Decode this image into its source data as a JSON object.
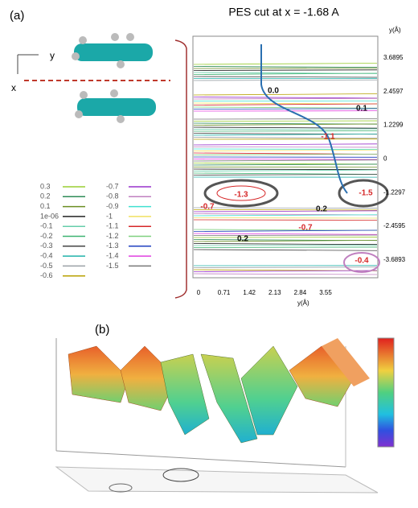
{
  "panel_a": {
    "label": "(a)",
    "title": "PES cut at x = -1.68 A",
    "axes_icon": {
      "y": "y",
      "x": "x"
    },
    "legend": [
      {
        "label": "0.3",
        "color": "#9acd32"
      },
      {
        "label": "0.2",
        "color": "#2e8b57"
      },
      {
        "label": "0.1",
        "color": "#6b8e23"
      },
      {
        "label": "1e-06",
        "color": "#222222"
      },
      {
        "label": "-0.1",
        "color": "#66cdaa"
      },
      {
        "label": "-0.2",
        "color": "#3cb371"
      },
      {
        "label": "-0.3",
        "color": "#444444"
      },
      {
        "label": "-0.4",
        "color": "#20b2aa"
      },
      {
        "label": "-0.5",
        "color": "#9aa0a6"
      },
      {
        "label": "-0.6",
        "color": "#b8a000"
      },
      {
        "label": "-0.7",
        "color": "#9932cc"
      },
      {
        "label": "-0.8",
        "color": "#c080c0"
      },
      {
        "label": "-0.9",
        "color": "#40e0d0"
      },
      {
        "label": "-1",
        "color": "#f0e060"
      },
      {
        "label": "-1.1",
        "color": "#d62728"
      },
      {
        "label": "-1.2",
        "color": "#7fd07f"
      },
      {
        "label": "-1.3",
        "color": "#1f3fbf"
      },
      {
        "label": "-1.4",
        "color": "#e040e0"
      },
      {
        "label": "-1.5",
        "color": "#777777"
      }
    ],
    "plot": {
      "y_axis_label": "y(Å)",
      "yticks": [
        "3.6895",
        "2.4597",
        "1.2299",
        "0",
        "-1.2297",
        "-2.4595",
        "-3.6893"
      ],
      "x_axis_label": "y(Å)",
      "xticks": [
        "0",
        "0.71",
        "1.42",
        "2.13",
        "2.84",
        "3.55"
      ],
      "contour_labels": [
        {
          "text": "0.0",
          "color": "#111111"
        },
        {
          "text": "0.1",
          "color": "#111111"
        },
        {
          "text": "-1.1",
          "color": "#d62728"
        },
        {
          "text": "-1.3",
          "color": "#d62728"
        },
        {
          "text": "-1.5",
          "color": "#d62728"
        },
        {
          "text": "0.2",
          "color": "#111111"
        },
        {
          "text": "-0.7",
          "color": "#d62728"
        },
        {
          "text": "-0.7",
          "color": "#d62728"
        },
        {
          "text": "0.2",
          "color": "#111111"
        },
        {
          "text": "-0.4",
          "color": "#d62728"
        }
      ]
    }
  },
  "panel_b": {
    "label": "(b)"
  }
}
